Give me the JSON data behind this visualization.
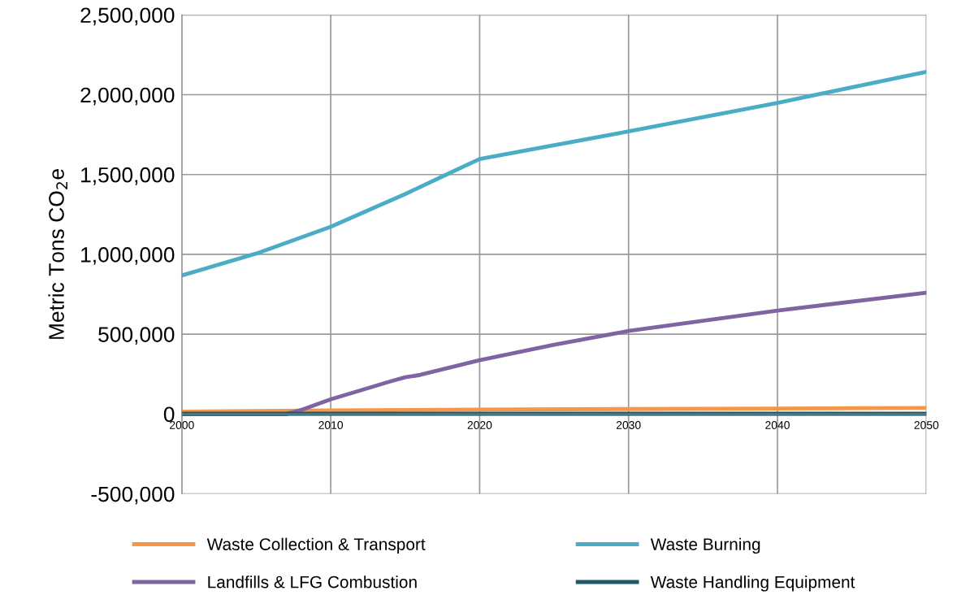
{
  "chart_data": {
    "type": "line",
    "ylabel": "Metric Tons CO$_{2}$e",
    "xlim": [
      2000,
      2050
    ],
    "xticks": [
      2000,
      2010,
      2020,
      2030,
      2040,
      2050
    ],
    "ylim": [
      -500000,
      2500000
    ],
    "yticks": [
      {
        "value": -500000,
        "label": "-500,000"
      },
      {
        "value": 0,
        "label": "0"
      },
      {
        "value": 500000,
        "label": "500,000"
      },
      {
        "value": 1000000,
        "label": "1,000,000"
      },
      {
        "value": 1500000,
        "label": "1,500,000"
      },
      {
        "value": 2000000,
        "label": "2,000,000"
      },
      {
        "value": 2500000,
        "label": "2,500,000"
      }
    ],
    "grid": true,
    "legend": "bottom",
    "marker": "none",
    "line_style": "solid",
    "series": [
      {
        "name": "Waste Collection & Transport",
        "color": "#f79646",
        "x": [
          2000,
          2010,
          2020,
          2030,
          2040,
          2050
        ],
        "values": [
          15000,
          22000,
          28000,
          31000,
          34000,
          38000
        ]
      },
      {
        "name": "Waste Burning",
        "color": "#4bacc6",
        "x": [
          2000,
          2005,
          2010,
          2015,
          2018,
          2020,
          2030,
          2040,
          2050
        ],
        "values": [
          868000,
          1005000,
          1173000,
          1378000,
          1510000,
          1597000,
          1770000,
          1949000,
          2143000
        ]
      },
      {
        "name": "Landfills & LFG Combustion",
        "color": "#8064a2",
        "x": [
          2000,
          2007,
          2008,
          2010,
          2014,
          2015,
          2016,
          2020,
          2025,
          2030,
          2040,
          2050
        ],
        "values": [
          0,
          0,
          25000,
          92000,
          204000,
          230000,
          245000,
          337000,
          434000,
          520000,
          648000,
          760000
        ]
      },
      {
        "name": "Waste Handling Equipment",
        "color": "#215968",
        "x": [
          2000,
          2050
        ],
        "values": [
          2000,
          2000
        ]
      }
    ]
  }
}
